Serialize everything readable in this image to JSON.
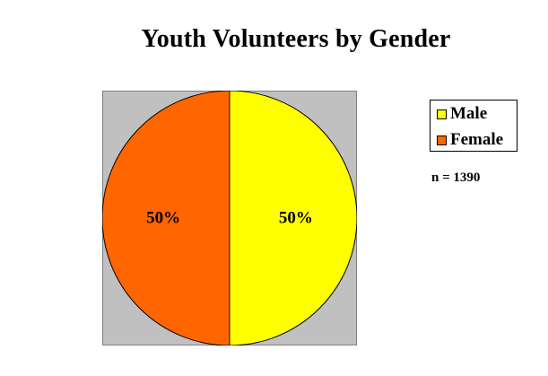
{
  "chart_data": {
    "type": "pie",
    "title": "Youth Volunteers by Gender",
    "categories": [
      "Male",
      "Female"
    ],
    "values": [
      50,
      50
    ],
    "labels": [
      "50%",
      "50%"
    ],
    "colors": [
      "#FFFF00",
      "#FF6600"
    ],
    "plot_background": "#C0C0C0",
    "legend": {
      "placement": "right",
      "entries": [
        "Male",
        "Female"
      ]
    },
    "annotations": [
      "n = 1390"
    ]
  }
}
